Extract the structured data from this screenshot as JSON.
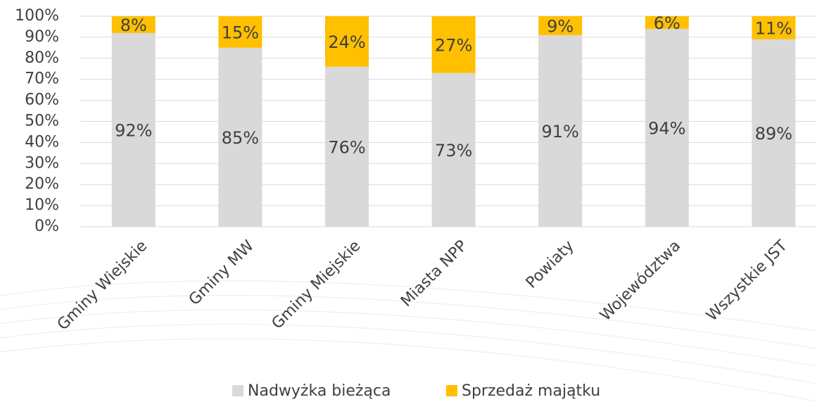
{
  "chart_data": {
    "type": "stacked_bar",
    "categories": [
      "Gminy Wiejskie",
      "Gminy MW",
      "Gminy Miejskie",
      "Miasta NPP",
      "Powiaty",
      "Województwa",
      "Wszystkie JST"
    ],
    "series": [
      {
        "name": "Nadwyżka bieżąca",
        "color": "#d9d9d9",
        "values": [
          92,
          85,
          76,
          73,
          91,
          94,
          89
        ],
        "value_labels": [
          "92%",
          "85%",
          "76%",
          "73%",
          "91%",
          "94%",
          "89%"
        ]
      },
      {
        "name": "Sprzedaż majątku",
        "color": "#ffc000",
        "values": [
          8,
          15,
          24,
          27,
          9,
          6,
          11
        ],
        "value_labels": [
          "8%",
          "15%",
          "24%",
          "27%",
          "9%",
          "6%",
          "11%"
        ]
      }
    ],
    "ylim": [
      0,
      100
    ],
    "yticks": [
      {
        "value": 0,
        "label": "0%"
      },
      {
        "value": 10,
        "label": "10%"
      },
      {
        "value": 20,
        "label": "20%"
      },
      {
        "value": 30,
        "label": "30%"
      },
      {
        "value": 40,
        "label": "40%"
      },
      {
        "value": 50,
        "label": "50%"
      },
      {
        "value": 60,
        "label": "60%"
      },
      {
        "value": 70,
        "label": "70%"
      },
      {
        "value": 80,
        "label": "80%"
      },
      {
        "value": 90,
        "label": "90%"
      },
      {
        "value": 100,
        "label": "100%"
      }
    ],
    "grid": true,
    "legend": "bottom"
  }
}
